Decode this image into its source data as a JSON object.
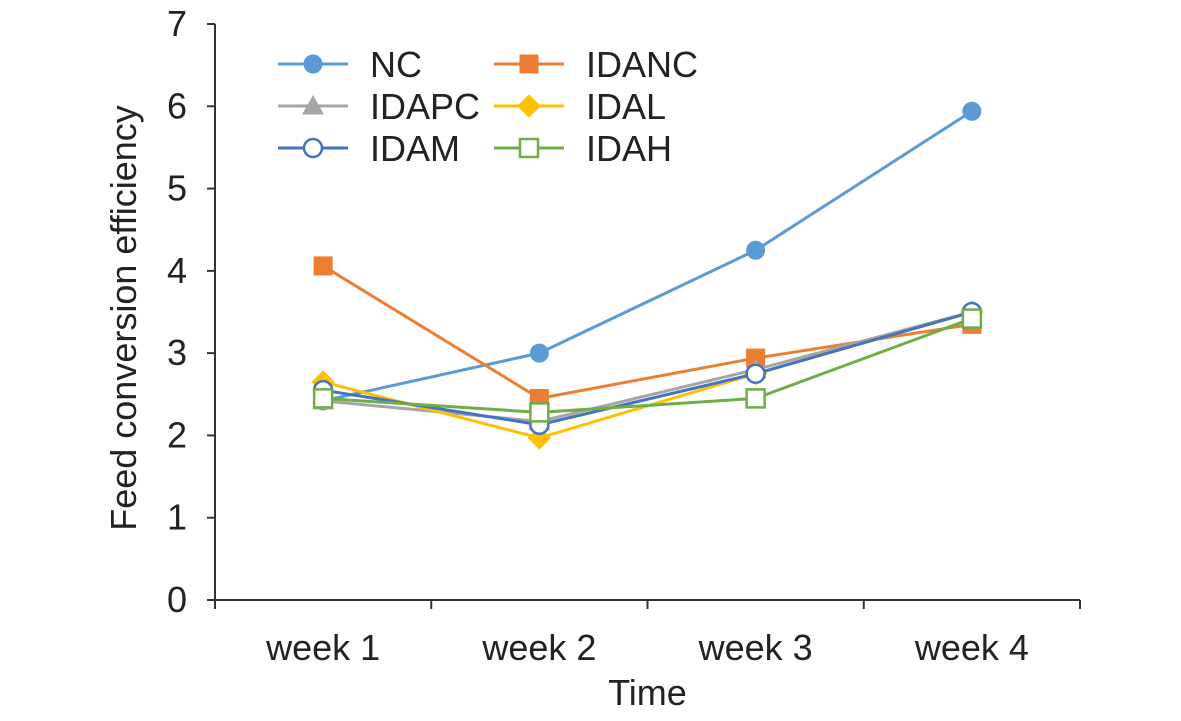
{
  "chart_data": {
    "type": "line",
    "title": "",
    "xlabel": "Time",
    "ylabel": "Feed conversion efficiency",
    "categories": [
      "week 1",
      "week 2",
      "week 3",
      "week 4"
    ],
    "ylim": [
      0,
      7
    ],
    "yticks": [
      "0",
      "1",
      "2",
      "3",
      "4",
      "5",
      "6",
      "7"
    ],
    "grid": false,
    "legend_position": "top-left",
    "series": [
      {
        "name": "NC",
        "color": "#5B9BD5",
        "marker": "circle-filled",
        "values": [
          2.42,
          3.0,
          4.25,
          5.94
        ]
      },
      {
        "name": "IDANC",
        "color": "#ED7D31",
        "marker": "square-filled",
        "values": [
          4.06,
          2.45,
          2.94,
          3.35
        ]
      },
      {
        "name": "IDAPC",
        "color": "#A5A5A5",
        "marker": "triangle-filled",
        "values": [
          2.42,
          2.17,
          2.8,
          3.5
        ]
      },
      {
        "name": "IDAL",
        "color": "#FFC000",
        "marker": "diamond-filled",
        "values": [
          2.65,
          1.97,
          2.75,
          3.5
        ]
      },
      {
        "name": "IDAM",
        "color": "#4472C4",
        "marker": "circle-open",
        "values": [
          2.55,
          2.13,
          2.75,
          3.5
        ]
      },
      {
        "name": "IDAH",
        "color": "#70AD47",
        "marker": "square-open",
        "values": [
          2.45,
          2.28,
          2.45,
          3.42
        ]
      }
    ]
  }
}
